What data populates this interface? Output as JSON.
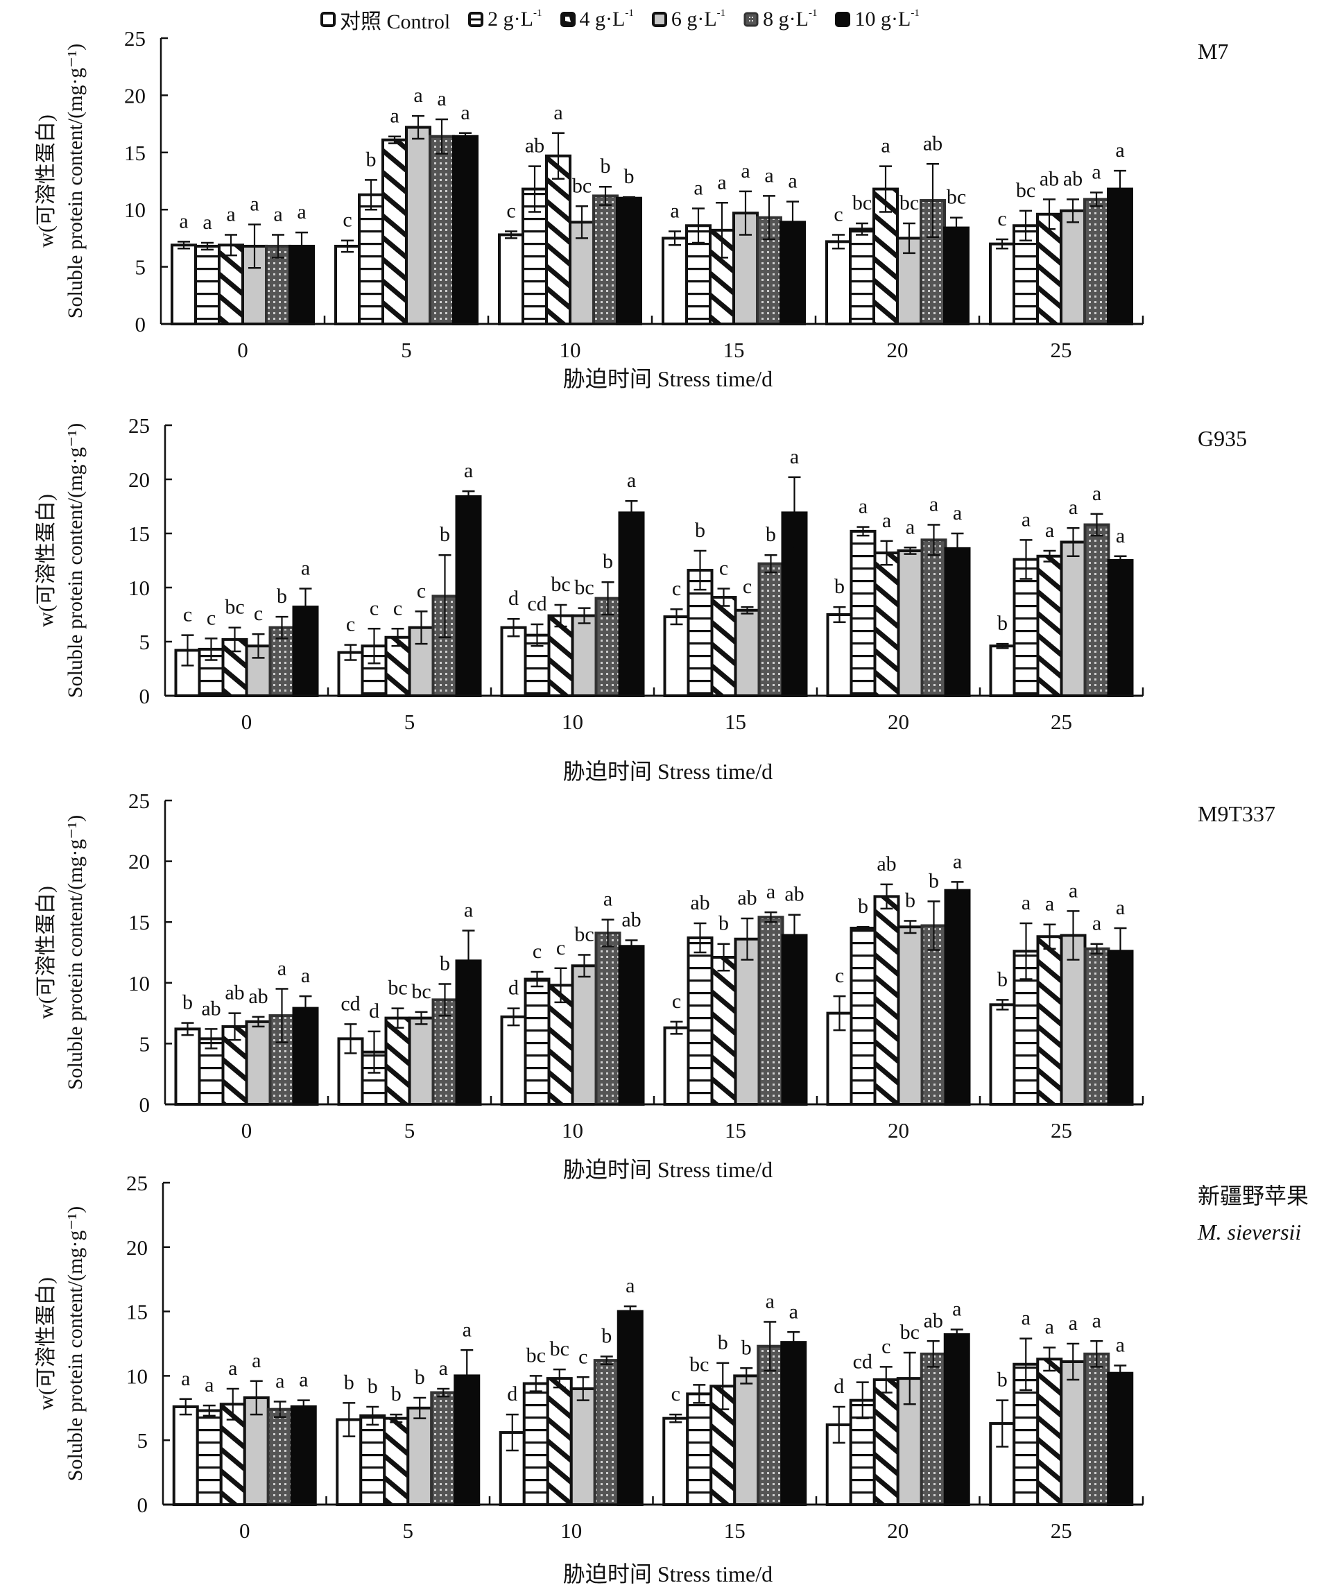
{
  "figure": {
    "legend": [
      {
        "label": "对照 Control",
        "pattern": "white"
      },
      {
        "label": "2 g·L",
        "sup": "-1",
        "pattern": "hlines"
      },
      {
        "label": "4 g·L",
        "sup": "-1",
        "pattern": "diag"
      },
      {
        "label": "6 g·L",
        "sup": "-1",
        "pattern": "gray"
      },
      {
        "label": "8 g·L",
        "sup": "-1",
        "pattern": "dots"
      },
      {
        "label": "10 g·L",
        "sup": "-1",
        "pattern": "black"
      }
    ],
    "colors": {
      "axis": "#111111",
      "gray_fill": "#c8c8c8",
      "dot_fill": "#555555",
      "black_fill": "#0a0a0a"
    }
  },
  "chart_data": [
    {
      "type": "bar",
      "title": "M7",
      "title_line2": "",
      "xlabel": "胁迫时间 Stress time/d",
      "ylabel_line1": "w(可溶性蛋白)",
      "ylabel_line2": "Soluble protein content/(mg·g⁻¹)",
      "ylim": [
        0,
        25
      ],
      "yticks": [
        0,
        5,
        10,
        15,
        20,
        25
      ],
      "categories": [
        "0",
        "5",
        "10",
        "15",
        "20",
        "25"
      ],
      "series": [
        {
          "name": "对照 Control",
          "values": [
            6.9,
            6.8,
            7.8,
            7.5,
            7.2,
            7.0
          ],
          "errors": [
            0.3,
            0.5,
            0.3,
            0.6,
            0.6,
            0.4
          ],
          "letters": [
            "a",
            "c",
            "c",
            "a",
            "c",
            "c"
          ]
        },
        {
          "name": "2 g·L-1",
          "values": [
            6.8,
            11.3,
            11.8,
            8.6,
            8.3,
            8.6
          ],
          "errors": [
            0.3,
            1.3,
            2.0,
            1.5,
            0.5,
            1.3
          ],
          "letters": [
            "a",
            "b",
            "ab",
            "a",
            "bc",
            "bc"
          ]
        },
        {
          "name": "4 g·L-1",
          "values": [
            6.9,
            16.1,
            14.7,
            8.2,
            11.8,
            9.6
          ],
          "errors": [
            0.9,
            0.3,
            2.0,
            2.4,
            2.0,
            1.3
          ],
          "letters": [
            "a",
            "a",
            "a",
            "a",
            "a",
            "ab"
          ]
        },
        {
          "name": "6 g·L-1",
          "values": [
            6.8,
            17.2,
            8.9,
            9.7,
            7.5,
            9.9
          ],
          "errors": [
            1.9,
            1.0,
            1.4,
            1.9,
            1.3,
            1.0
          ],
          "letters": [
            "a",
            "a",
            "bc",
            "a",
            "bc",
            "ab"
          ]
        },
        {
          "name": "8 g·L-1",
          "values": [
            6.8,
            16.4,
            11.2,
            9.3,
            10.8,
            10.9
          ],
          "errors": [
            1.0,
            1.5,
            0.8,
            1.9,
            3.2,
            0.6
          ],
          "letters": [
            "a",
            "a",
            "b",
            "a",
            "ab",
            "a"
          ]
        },
        {
          "name": "10 g·L-1",
          "values": [
            6.8,
            16.4,
            11.0,
            8.9,
            8.4,
            11.8
          ],
          "errors": [
            1.2,
            0.3,
            0.1,
            1.8,
            0.9,
            1.6
          ],
          "letters": [
            "a",
            "a",
            "b",
            "a",
            "bc",
            "a"
          ]
        }
      ]
    },
    {
      "type": "bar",
      "title": "G935",
      "title_line2": "",
      "xlabel": "胁迫时间 Stress time/d",
      "ylabel_line1": "w(可溶性蛋白)",
      "ylabel_line2": "Soluble protein content/(mg·g⁻¹)",
      "ylim": [
        0,
        25
      ],
      "yticks": [
        0,
        5,
        10,
        15,
        20,
        25
      ],
      "categories": [
        "0",
        "5",
        "10",
        "15",
        "20",
        "25"
      ],
      "series": [
        {
          "name": "对照 Control",
          "values": [
            4.2,
            4.0,
            6.3,
            7.3,
            7.5,
            4.6
          ],
          "errors": [
            1.4,
            0.7,
            0.8,
            0.7,
            0.7,
            0.2
          ],
          "letters": [
            "c",
            "c",
            "d",
            "c",
            "b",
            "b"
          ]
        },
        {
          "name": "2 g·L-1",
          "values": [
            4.3,
            4.6,
            5.6,
            11.6,
            15.2,
            12.6
          ],
          "errors": [
            1.0,
            1.6,
            1.0,
            1.8,
            0.4,
            1.8
          ],
          "letters": [
            "c",
            "c",
            "cd",
            "b",
            "a",
            "a"
          ]
        },
        {
          "name": "4 g·L-1",
          "values": [
            5.2,
            5.4,
            7.4,
            9.1,
            13.2,
            12.9
          ],
          "errors": [
            1.1,
            0.8,
            1.0,
            0.8,
            1.1,
            0.5
          ],
          "letters": [
            "bc",
            "c",
            "bc",
            "c",
            "a",
            "a"
          ]
        },
        {
          "name": "6 g·L-1",
          "values": [
            4.6,
            6.3,
            7.4,
            7.9,
            13.4,
            14.2
          ],
          "errors": [
            1.1,
            1.5,
            0.7,
            0.3,
            0.3,
            1.3
          ],
          "letters": [
            "c",
            "c",
            "bc",
            "c",
            "a",
            "a"
          ]
        },
        {
          "name": "8 g·L-1",
          "values": [
            6.3,
            9.2,
            9.0,
            12.2,
            14.4,
            15.8
          ],
          "errors": [
            1.0,
            3.8,
            1.5,
            0.8,
            1.4,
            1.0
          ],
          "letters": [
            "b",
            "b",
            "b",
            "b",
            "a",
            "a"
          ]
        },
        {
          "name": "10 g·L-1",
          "values": [
            8.2,
            18.4,
            16.9,
            16.9,
            13.6,
            12.5
          ],
          "errors": [
            1.7,
            0.5,
            1.1,
            3.3,
            1.4,
            0.4
          ],
          "letters": [
            "a",
            "a",
            "a",
            "a",
            "a",
            "a"
          ]
        }
      ]
    },
    {
      "type": "bar",
      "title": "M9T337",
      "title_line2": "",
      "xlabel": "胁迫时间 Stress time/d",
      "ylabel_line1": "w(可溶性蛋白)",
      "ylabel_line2": "Soluble protein content/(mg·g⁻¹)",
      "ylim": [
        0,
        25
      ],
      "yticks": [
        0,
        5,
        10,
        15,
        20,
        25
      ],
      "categories": [
        "0",
        "5",
        "10",
        "15",
        "20",
        "25"
      ],
      "series": [
        {
          "name": "对照 Control",
          "values": [
            6.2,
            5.4,
            7.2,
            6.3,
            7.5,
            8.2
          ],
          "errors": [
            0.5,
            1.2,
            0.7,
            0.5,
            1.4,
            0.4
          ],
          "letters": [
            "b",
            "cd",
            "d",
            "c",
            "c",
            "b"
          ]
        },
        {
          "name": "2 g·L-1",
          "values": [
            5.4,
            4.3,
            10.3,
            13.7,
            14.5,
            12.6
          ],
          "errors": [
            0.8,
            1.7,
            0.6,
            1.2,
            0.1,
            2.3
          ],
          "letters": [
            "ab",
            "d",
            "c",
            "ab",
            "b",
            "a"
          ]
        },
        {
          "name": "4 g·L-1",
          "values": [
            6.4,
            7.1,
            9.8,
            12.1,
            17.1,
            13.8
          ],
          "errors": [
            1.1,
            0.8,
            1.4,
            1.1,
            1.0,
            1.0
          ],
          "letters": [
            "ab",
            "bc",
            "c",
            "b",
            "ab",
            "a"
          ]
        },
        {
          "name": "6 g·L-1",
          "values": [
            6.8,
            7.1,
            11.4,
            13.6,
            14.6,
            13.9
          ],
          "errors": [
            0.4,
            0.5,
            0.9,
            1.7,
            0.5,
            2.0
          ],
          "letters": [
            "ab",
            "bc",
            "bc",
            "ab",
            "b",
            "a"
          ]
        },
        {
          "name": "8 g·L-1",
          "values": [
            7.3,
            8.6,
            14.1,
            15.4,
            14.7,
            12.8
          ],
          "errors": [
            2.2,
            1.3,
            1.1,
            0.4,
            2.0,
            0.4
          ],
          "letters": [
            "a",
            "b",
            "a",
            "a",
            "b",
            "a"
          ]
        },
        {
          "name": "10 g·L-1",
          "values": [
            7.9,
            11.8,
            13.0,
            13.9,
            17.6,
            12.6
          ],
          "errors": [
            1.0,
            2.5,
            0.5,
            1.7,
            0.7,
            1.9
          ],
          "letters": [
            "a",
            "a",
            "ab",
            "ab",
            "a",
            "a"
          ]
        }
      ]
    },
    {
      "type": "bar",
      "title": "新疆野苹果",
      "title_line2": "M. sieversii",
      "xlabel": "胁迫时间 Stress time/d",
      "ylabel_line1": "w(可溶性蛋白)",
      "ylabel_line2": "Soluble protein content/(mg·g⁻¹)",
      "ylim": [
        0,
        25
      ],
      "yticks": [
        0,
        5,
        10,
        15,
        20,
        25
      ],
      "categories": [
        "0",
        "5",
        "10",
        "15",
        "20",
        "25"
      ],
      "series": [
        {
          "name": "对照 Control",
          "values": [
            7.6,
            6.6,
            5.6,
            6.7,
            6.2,
            6.3
          ],
          "errors": [
            0.6,
            1.3,
            1.4,
            0.3,
            1.4,
            1.8
          ],
          "letters": [
            "a",
            "b",
            "d",
            "c",
            "d",
            "b"
          ]
        },
        {
          "name": "2 g·L-1",
          "values": [
            7.3,
            6.9,
            9.4,
            8.6,
            8.1,
            10.9
          ],
          "errors": [
            0.4,
            0.7,
            0.6,
            0.7,
            1.4,
            2.0
          ],
          "letters": [
            "a",
            "b",
            "bc",
            "bc",
            "cd",
            "a"
          ]
        },
        {
          "name": "4 g·L-1",
          "values": [
            7.8,
            6.7,
            9.8,
            9.2,
            9.7,
            11.3
          ],
          "errors": [
            1.2,
            0.3,
            0.7,
            1.8,
            1.0,
            0.9
          ],
          "letters": [
            "a",
            "b",
            "bc",
            "b",
            "c",
            "a"
          ]
        },
        {
          "name": "6 g·L-1",
          "values": [
            8.3,
            7.5,
            9.0,
            10.0,
            9.8,
            11.1
          ],
          "errors": [
            1.3,
            0.8,
            0.9,
            0.6,
            2.0,
            1.4
          ],
          "letters": [
            "a",
            "b",
            "c",
            "b",
            "bc",
            "a"
          ]
        },
        {
          "name": "8 g·L-1",
          "values": [
            7.4,
            8.7,
            11.2,
            12.3,
            11.7,
            11.7
          ],
          "errors": [
            0.6,
            0.3,
            0.3,
            1.9,
            1.0,
            1.0
          ],
          "letters": [
            "a",
            "a",
            "b",
            "a",
            "ab",
            "a"
          ]
        },
        {
          "name": "10 g·L-1",
          "values": [
            7.6,
            10.0,
            15.0,
            12.6,
            13.2,
            10.2
          ],
          "errors": [
            0.5,
            2.0,
            0.4,
            0.8,
            0.4,
            0.6
          ],
          "letters": [
            "a",
            "a",
            "a",
            "a",
            "a",
            "a"
          ]
        }
      ]
    }
  ]
}
